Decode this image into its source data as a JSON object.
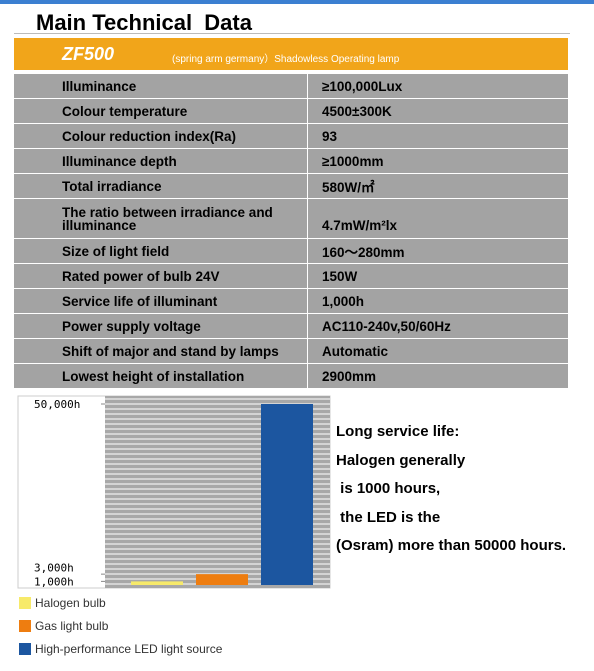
{
  "header": {
    "title": "Main Technical  Data"
  },
  "banner": {
    "model": "ZF500",
    "description": "(spring arm germany）Shadowless Operating lamp"
  },
  "table": {
    "rows": [
      [
        "Illuminance",
        "≥100,000Lux"
      ],
      [
        "Colour temperature",
        "4500±300K"
      ],
      [
        "Colour reduction index(Ra)",
        "93"
      ],
      [
        "Illuminance depth",
        "≥1000mm"
      ],
      [
        "Total irradiance",
        "580W/㎡"
      ],
      [
        "The ratio between irradiance and illuminance",
        "4.7mW/m²lx"
      ],
      [
        "Size of light field",
        "160～280mm"
      ],
      [
        "Rated power of bulb 24V",
        "150W"
      ],
      [
        "Service life of illuminant",
        "1,000h"
      ],
      [
        "Power supply voltage",
        "AC110-240v,50/60Hz"
      ],
      [
        "Shift of major and stand by lamps",
        "Automatic"
      ],
      [
        "Lowest height of installation",
        "2900mm"
      ]
    ]
  },
  "chart_data": {
    "type": "bar",
    "categories": [
      "Halogen bulb",
      "Gas light bulb",
      "High-performance LED light source"
    ],
    "values": [
      1000,
      3000,
      50000
    ],
    "colors": [
      "#f7ea6a",
      "#ee7d10",
      "#1c56a0"
    ],
    "ylim": [
      0,
      50000
    ],
    "yticks": [
      {
        "value": 1000,
        "label": "1,000h"
      },
      {
        "value": 3000,
        "label": "3,000h"
      },
      {
        "value": 50000,
        "label": "50,000h"
      }
    ],
    "legend": "bottom"
  },
  "note": {
    "lines": [
      "Long service life:",
      "Halogen generally",
      " is 1000 hours,",
      " the LED is the",
      "(Osram) more than 50000 hours."
    ]
  }
}
